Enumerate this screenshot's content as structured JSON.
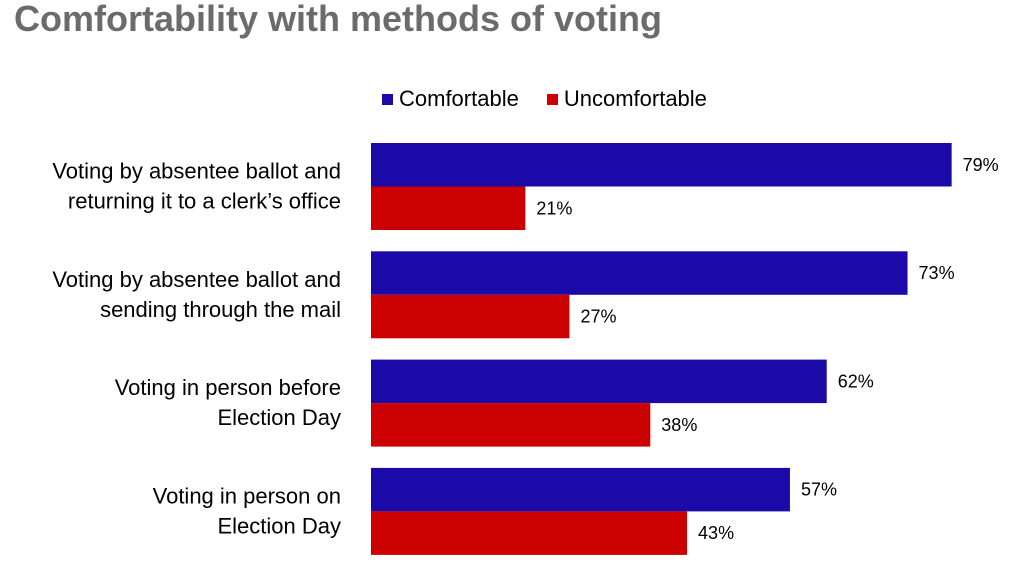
{
  "chart_data": {
    "type": "bar",
    "orientation": "horizontal",
    "title": "Comfortability with methods of voting",
    "categories": [
      [
        "Voting by absentee ballot and",
        "returning it to a clerk’s office"
      ],
      [
        "Voting by absentee ballot and",
        "sending through the mail"
      ],
      [
        "Voting in person before",
        "Election Day"
      ],
      [
        "Voting in person on",
        "Election Day"
      ]
    ],
    "series": [
      {
        "name": "Comfortable",
        "color": "#1c0aa8",
        "values": [
          79,
          73,
          62,
          57
        ],
        "labels": [
          "79%",
          "73%",
          "62%",
          "57%"
        ]
      },
      {
        "name": "Uncomfortable",
        "color": "#cc0000",
        "values": [
          21,
          27,
          38,
          43
        ],
        "labels": [
          "21%",
          "27%",
          "38%",
          "43%"
        ]
      }
    ],
    "xlim": [
      0,
      80
    ],
    "legend_position": "top",
    "grid": false
  }
}
